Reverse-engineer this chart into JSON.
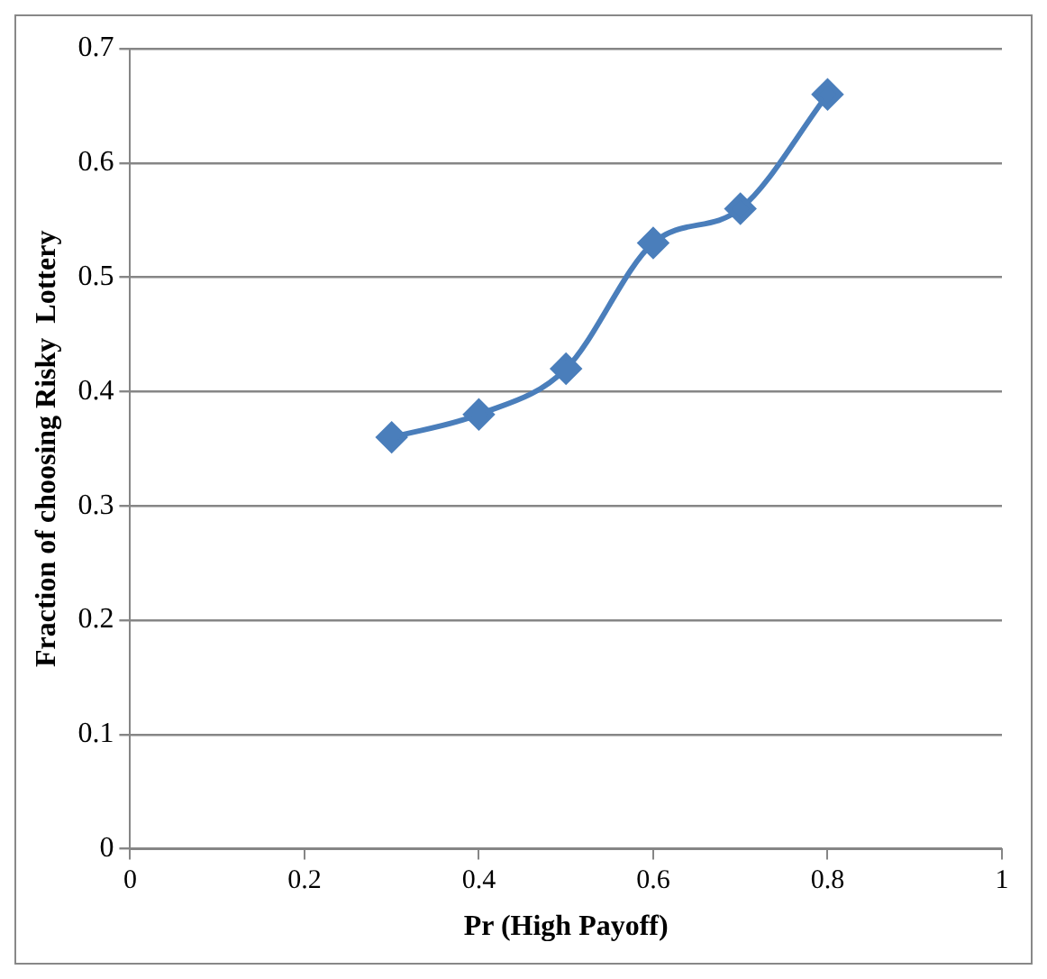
{
  "chart_data": {
    "type": "line",
    "xlabel": "Pr (High Payoff)",
    "ylabel": "Fraction of choosing Risky  Lottery",
    "x": [
      0.3,
      0.4,
      0.5,
      0.6,
      0.7,
      0.8
    ],
    "series": [
      {
        "color": "#4a7ebb",
        "values": [
          0.36,
          0.38,
          0.42,
          0.53,
          0.56,
          0.66
        ]
      }
    ],
    "xlim": [
      0,
      1
    ],
    "xticks": [
      0,
      0.2,
      0.4,
      0.6,
      0.8,
      1
    ],
    "ylim": [
      0,
      0.7
    ],
    "yticks": [
      0,
      0.1,
      0.2,
      0.3,
      0.4,
      0.5,
      0.6,
      0.7
    ],
    "grid": "y",
    "legend": false,
    "marker": "diamond",
    "line_style": "solid"
  }
}
